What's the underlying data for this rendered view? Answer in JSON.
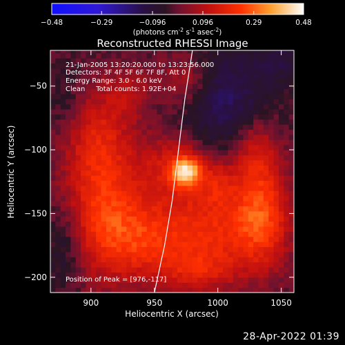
{
  "chart_data": {
    "type": "heatmap",
    "title": "Reconstructed RHESSI Image",
    "xlabel": "Heliocentric X (arcsec)",
    "ylabel": "Heliocentric Y (arcsec)",
    "xlim": [
      868,
      1060
    ],
    "ylim": [
      -212,
      -22
    ],
    "x_ticks": [
      900,
      950,
      1000,
      1050
    ],
    "y_ticks": [
      -50,
      -100,
      -150,
      -200
    ],
    "colorbar": {
      "min": -0.48,
      "max": 0.48,
      "ticks": [
        -0.48,
        -0.29,
        -0.096,
        0.096,
        0.29,
        0.48
      ],
      "tick_labels": [
        "-0.48",
        "-0.29",
        "-0.096",
        "0.096",
        "0.29",
        "0.48"
      ],
      "units_label": "(photons cm",
      "units_sup1": "-2",
      "units_mid": " s",
      "units_sup2": "-1",
      "units_end": " asec",
      "units_sup3": "-2",
      "units_close": ")"
    },
    "annotations": [
      "21-Jan-2005 13:20:20.000 to 13:23:56.000",
      "Detectors: 3F 4F 5F 6F 7F 8F, Att 0",
      "Energy Range: 3.0 - 6.0 keV",
      "Clean     Total counts: 1.92E+04"
    ],
    "peak_label": "Position of Peak = [976,-117]",
    "peak": {
      "x": 976,
      "y": -117,
      "value": 0.48
    },
    "limb": [
      [
        950,
        -212
      ],
      [
        958,
        -175
      ],
      [
        964,
        -140
      ],
      [
        969,
        -100
      ],
      [
        974,
        -60
      ],
      [
        980,
        -22
      ]
    ],
    "sources": [
      {
        "x": 975,
        "y": -117,
        "sx": 8,
        "sy": 8,
        "amp": 0.34
      },
      {
        "x": 965,
        "y": -112,
        "sx": 20,
        "sy": 18,
        "amp": 0.14
      },
      {
        "x": 910,
        "y": -150,
        "sx": 22,
        "sy": 35,
        "amp": 0.2
      },
      {
        "x": 905,
        "y": -90,
        "sx": 18,
        "sy": 28,
        "amp": 0.14
      },
      {
        "x": 945,
        "y": -170,
        "sx": 25,
        "sy": 22,
        "amp": 0.17
      },
      {
        "x": 1000,
        "y": -160,
        "sx": 28,
        "sy": 25,
        "amp": 0.18
      },
      {
        "x": 1035,
        "y": -150,
        "sx": 15,
        "sy": 30,
        "amp": 0.2
      },
      {
        "x": 1030,
        "y": -100,
        "sx": 12,
        "sy": 20,
        "amp": 0.12
      },
      {
        "x": 975,
        "y": -45,
        "sx": 15,
        "sy": 15,
        "amp": 0.12
      },
      {
        "x": 930,
        "y": -55,
        "sx": 12,
        "sy": 14,
        "amp": 0.09
      },
      {
        "x": 985,
        "y": -195,
        "sx": 20,
        "sy": 12,
        "amp": 0.12
      },
      {
        "x": 1000,
        "y": -125,
        "sx": 10,
        "sy": 12,
        "amp": 0.1
      }
    ],
    "depressions": [
      {
        "x": 1005,
        "y": -60,
        "sx": 25,
        "sy": 28,
        "amp": -0.14
      },
      {
        "x": 880,
        "y": -175,
        "sx": 12,
        "sy": 25,
        "amp": -0.09
      },
      {
        "x": 1050,
        "y": -30,
        "sx": 15,
        "sy": 12,
        "amp": -0.08
      },
      {
        "x": 880,
        "y": -60,
        "sx": 10,
        "sy": 20,
        "amp": -0.05
      }
    ]
  },
  "footer": {
    "timestamp": "28-Apr-2022 01:39"
  }
}
